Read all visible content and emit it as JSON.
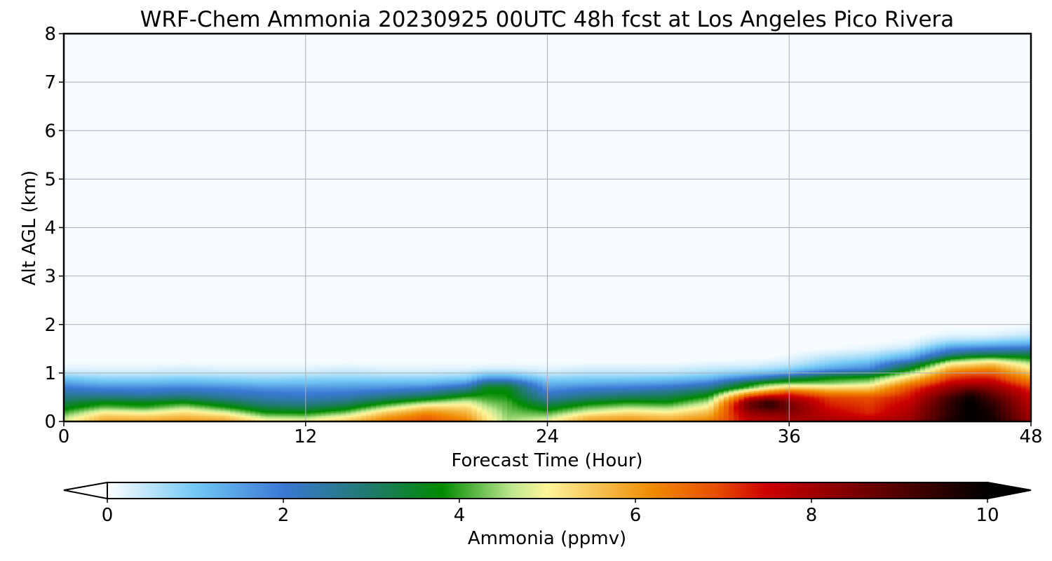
{
  "chart_data": {
    "type": "heatmap",
    "title": "WRF-Chem Ammonia  20230925 00UTC 48h fcst at Los Angeles Pico Rivera",
    "xlabel": "Forecast Time (Hour)",
    "ylabel": "Alt AGL (km)",
    "xlim": [
      0,
      48
    ],
    "ylim": [
      0,
      8
    ],
    "x_ticks": [
      "0",
      "12",
      "24",
      "36",
      "48"
    ],
    "y_ticks": [
      "0",
      "1",
      "2",
      "3",
      "4",
      "5",
      "6",
      "7",
      "8"
    ],
    "grid": true,
    "colorbar": {
      "label": "Ammonia  (ppmv)",
      "range": [
        0,
        10
      ],
      "ticks": [
        "0",
        "2",
        "4",
        "6",
        "8",
        "10"
      ],
      "extend": "both",
      "stops": [
        {
          "v": 0,
          "c": "#ffffff"
        },
        {
          "v": 1,
          "c": "#72c8f5"
        },
        {
          "v": 2,
          "c": "#3a78d4"
        },
        {
          "v": 3,
          "c": "#1f7a6a"
        },
        {
          "v": 3.8,
          "c": "#008a00"
        },
        {
          "v": 4.6,
          "c": "#c0e890"
        },
        {
          "v": 5,
          "c": "#fff59a"
        },
        {
          "v": 5.6,
          "c": "#f5c050"
        },
        {
          "v": 6.2,
          "c": "#f08a00"
        },
        {
          "v": 6.9,
          "c": "#e85000"
        },
        {
          "v": 7.5,
          "c": "#cc0000"
        },
        {
          "v": 8.5,
          "c": "#7a0000"
        },
        {
          "v": 10,
          "c": "#000000"
        }
      ]
    },
    "hours": [
      0,
      2,
      4,
      6,
      8,
      10,
      12,
      14,
      16,
      18,
      20,
      21,
      22,
      24,
      26,
      28,
      30,
      32,
      34,
      35,
      36,
      38,
      40,
      42,
      44,
      45,
      46,
      48
    ],
    "heights_km": [
      0,
      0.1,
      0.2,
      0.3,
      0.4,
      0.5,
      0.6,
      0.7,
      0.8,
      0.9,
      1.0,
      1.1,
      1.2,
      1.3,
      1.4,
      1.5,
      1.6,
      1.7,
      1.8,
      1.9,
      2.0
    ],
    "values": [
      [
        4.8,
        4.5,
        4.0,
        3.6,
        3.2,
        2.8,
        2.4,
        2.0,
        1.5,
        1.0,
        0.5,
        0.2,
        0.1,
        0,
        0,
        0,
        0,
        0,
        0,
        0,
        0
      ],
      [
        6.0,
        5.6,
        5.0,
        4.2,
        3.7,
        2.9,
        2.3,
        1.8,
        1.2,
        0.8,
        0.4,
        0.2,
        0.1,
        0,
        0,
        0,
        0,
        0,
        0,
        0,
        0
      ],
      [
        6.0,
        5.5,
        4.8,
        4.0,
        3.6,
        2.8,
        2.2,
        1.8,
        1.2,
        0.8,
        0.4,
        0.2,
        0.1,
        0,
        0,
        0,
        0,
        0,
        0,
        0,
        0
      ],
      [
        6.2,
        5.7,
        5.2,
        4.5,
        3.8,
        3.0,
        2.4,
        1.9,
        1.3,
        0.9,
        0.4,
        0.3,
        0.1,
        0,
        0,
        0,
        0,
        0,
        0,
        0,
        0
      ],
      [
        6.0,
        5.5,
        4.7,
        3.9,
        3.3,
        2.6,
        2.2,
        1.8,
        1.2,
        0.8,
        0.4,
        0.2,
        0.1,
        0,
        0,
        0,
        0,
        0,
        0,
        0,
        0
      ],
      [
        5.2,
        4.5,
        3.8,
        3.2,
        2.7,
        2.3,
        2.0,
        1.6,
        1.1,
        0.7,
        0.4,
        0.2,
        0.1,
        0,
        0,
        0,
        0,
        0,
        0,
        0,
        0
      ],
      [
        5.1,
        4.4,
        3.7,
        3.1,
        2.6,
        2.2,
        1.9,
        1.6,
        1.1,
        0.8,
        0.4,
        0.2,
        0.1,
        0,
        0,
        0,
        0,
        0,
        0,
        0,
        0
      ],
      [
        5.6,
        5.0,
        4.2,
        3.5,
        2.9,
        2.4,
        2.0,
        1.6,
        1.2,
        0.8,
        0.5,
        0.3,
        0.1,
        0,
        0,
        0,
        0,
        0,
        0,
        0,
        0
      ],
      [
        6.5,
        6.0,
        5.4,
        4.5,
        3.7,
        2.9,
        2.3,
        1.7,
        1.2,
        0.8,
        0.4,
        0.2,
        0.1,
        0,
        0,
        0,
        0,
        0,
        0,
        0,
        0
      ],
      [
        7.0,
        6.6,
        6.1,
        5.4,
        4.4,
        3.4,
        2.6,
        1.9,
        1.2,
        0.8,
        0.4,
        0.2,
        0.1,
        0,
        0,
        0,
        0,
        0,
        0,
        0,
        0
      ],
      [
        6.4,
        6.0,
        5.7,
        5.3,
        4.8,
        4.1,
        3.3,
        2.5,
        1.6,
        0.9,
        0.5,
        0.2,
        0.1,
        0,
        0,
        0,
        0,
        0,
        0,
        0,
        0
      ],
      [
        5.3,
        5.1,
        4.9,
        4.6,
        4.3,
        4.0,
        3.8,
        3.6,
        2.8,
        1.6,
        0.8,
        0.3,
        0.1,
        0,
        0,
        0,
        0,
        0,
        0,
        0,
        0
      ],
      [
        4.5,
        4.4,
        4.3,
        4.2,
        4.1,
        3.9,
        3.8,
        3.6,
        2.8,
        1.6,
        0.8,
        0.3,
        0.1,
        0,
        0,
        0,
        0,
        0,
        0,
        0,
        0
      ],
      [
        5.0,
        4.5,
        4.0,
        3.5,
        3.0,
        2.4,
        2.0,
        1.6,
        1.2,
        0.8,
        0.4,
        0.2,
        0.1,
        0,
        0,
        0,
        0,
        0,
        0,
        0,
        0
      ],
      [
        6.0,
        5.6,
        4.8,
        4.2,
        3.6,
        2.9,
        2.4,
        1.9,
        1.3,
        0.9,
        0.5,
        0.3,
        0.1,
        0,
        0,
        0,
        0,
        0,
        0,
        0,
        0
      ],
      [
        6.2,
        5.8,
        5.2,
        4.5,
        3.9,
        3.2,
        2.6,
        2.0,
        1.4,
        0.9,
        0.5,
        0.3,
        0.1,
        0,
        0,
        0,
        0,
        0,
        0,
        0,
        0
      ],
      [
        6.0,
        5.6,
        5.0,
        4.4,
        3.8,
        3.3,
        2.8,
        2.2,
        1.5,
        1.0,
        0.5,
        0.3,
        0.1,
        0,
        0,
        0,
        0,
        0,
        0,
        0,
        0
      ],
      [
        6.4,
        6.0,
        5.6,
        5.1,
        4.6,
        4.0,
        3.4,
        2.7,
        1.9,
        1.2,
        0.7,
        0.4,
        0.2,
        0,
        0,
        0,
        0,
        0,
        0,
        0,
        0
      ],
      [
        7.6,
        7.8,
        8.2,
        8.6,
        8.5,
        7.4,
        5.8,
        4.2,
        3.5,
        2.0,
        1.0,
        0.5,
        0.2,
        0.1,
        0,
        0,
        0,
        0,
        0,
        0,
        0
      ],
      [
        7.8,
        8.0,
        8.5,
        9.3,
        9.4,
        8.0,
        6.5,
        5.0,
        4.0,
        2.5,
        1.2,
        0.6,
        0.3,
        0.1,
        0,
        0,
        0,
        0,
        0,
        0,
        0
      ],
      [
        7.9,
        8.1,
        8.4,
        8.6,
        8.4,
        7.8,
        7.0,
        5.5,
        4.2,
        3.2,
        1.5,
        0.8,
        0.4,
        0.2,
        0.1,
        0,
        0,
        0,
        0,
        0,
        0
      ],
      [
        8.0,
        7.8,
        7.6,
        7.4,
        7.2,
        7.0,
        6.2,
        5.3,
        4.3,
        3.8,
        2.6,
        1.4,
        0.9,
        0.6,
        0.3,
        0.1,
        0,
        0,
        0,
        0,
        0
      ],
      [
        7.9,
        7.5,
        7.2,
        7.1,
        7.0,
        6.9,
        6.1,
        5.4,
        4.6,
        4.0,
        3.0,
        1.8,
        1.3,
        0.8,
        0.5,
        0.2,
        0.1,
        0,
        0,
        0,
        0
      ],
      [
        8.2,
        8.0,
        7.9,
        7.8,
        7.6,
        7.4,
        7.2,
        6.9,
        6.2,
        5.4,
        4.5,
        3.6,
        2.8,
        1.6,
        1.0,
        0.5,
        0.2,
        0.1,
        0,
        0,
        0
      ],
      [
        9.6,
        9.6,
        9.5,
        9.5,
        9.4,
        9.2,
        8.6,
        8.2,
        7.6,
        7.1,
        6.5,
        5.8,
        5.0,
        3.8,
        2.6,
        1.8,
        1.0,
        0.5,
        0.2,
        0.1,
        0
      ],
      [
        10,
        10,
        10,
        10,
        10,
        9.9,
        9.4,
        8.6,
        7.8,
        7.3,
        6.8,
        6.0,
        5.2,
        4.2,
        3.0,
        2.0,
        1.1,
        0.5,
        0.2,
        0.1,
        0
      ],
      [
        9.8,
        9.8,
        9.7,
        9.6,
        9.4,
        9.1,
        8.7,
        8.3,
        7.8,
        7.3,
        6.8,
        6.2,
        5.5,
        4.4,
        3.1,
        2.1,
        1.2,
        0.6,
        0.2,
        0.1,
        0
      ],
      [
        8.2,
        8.0,
        7.9,
        7.8,
        7.7,
        7.6,
        7.4,
        7.1,
        6.6,
        6.1,
        5.6,
        5.1,
        4.6,
        3.9,
        3.2,
        2.3,
        1.4,
        0.8,
        0.4,
        0.2,
        0.1
      ]
    ]
  }
}
